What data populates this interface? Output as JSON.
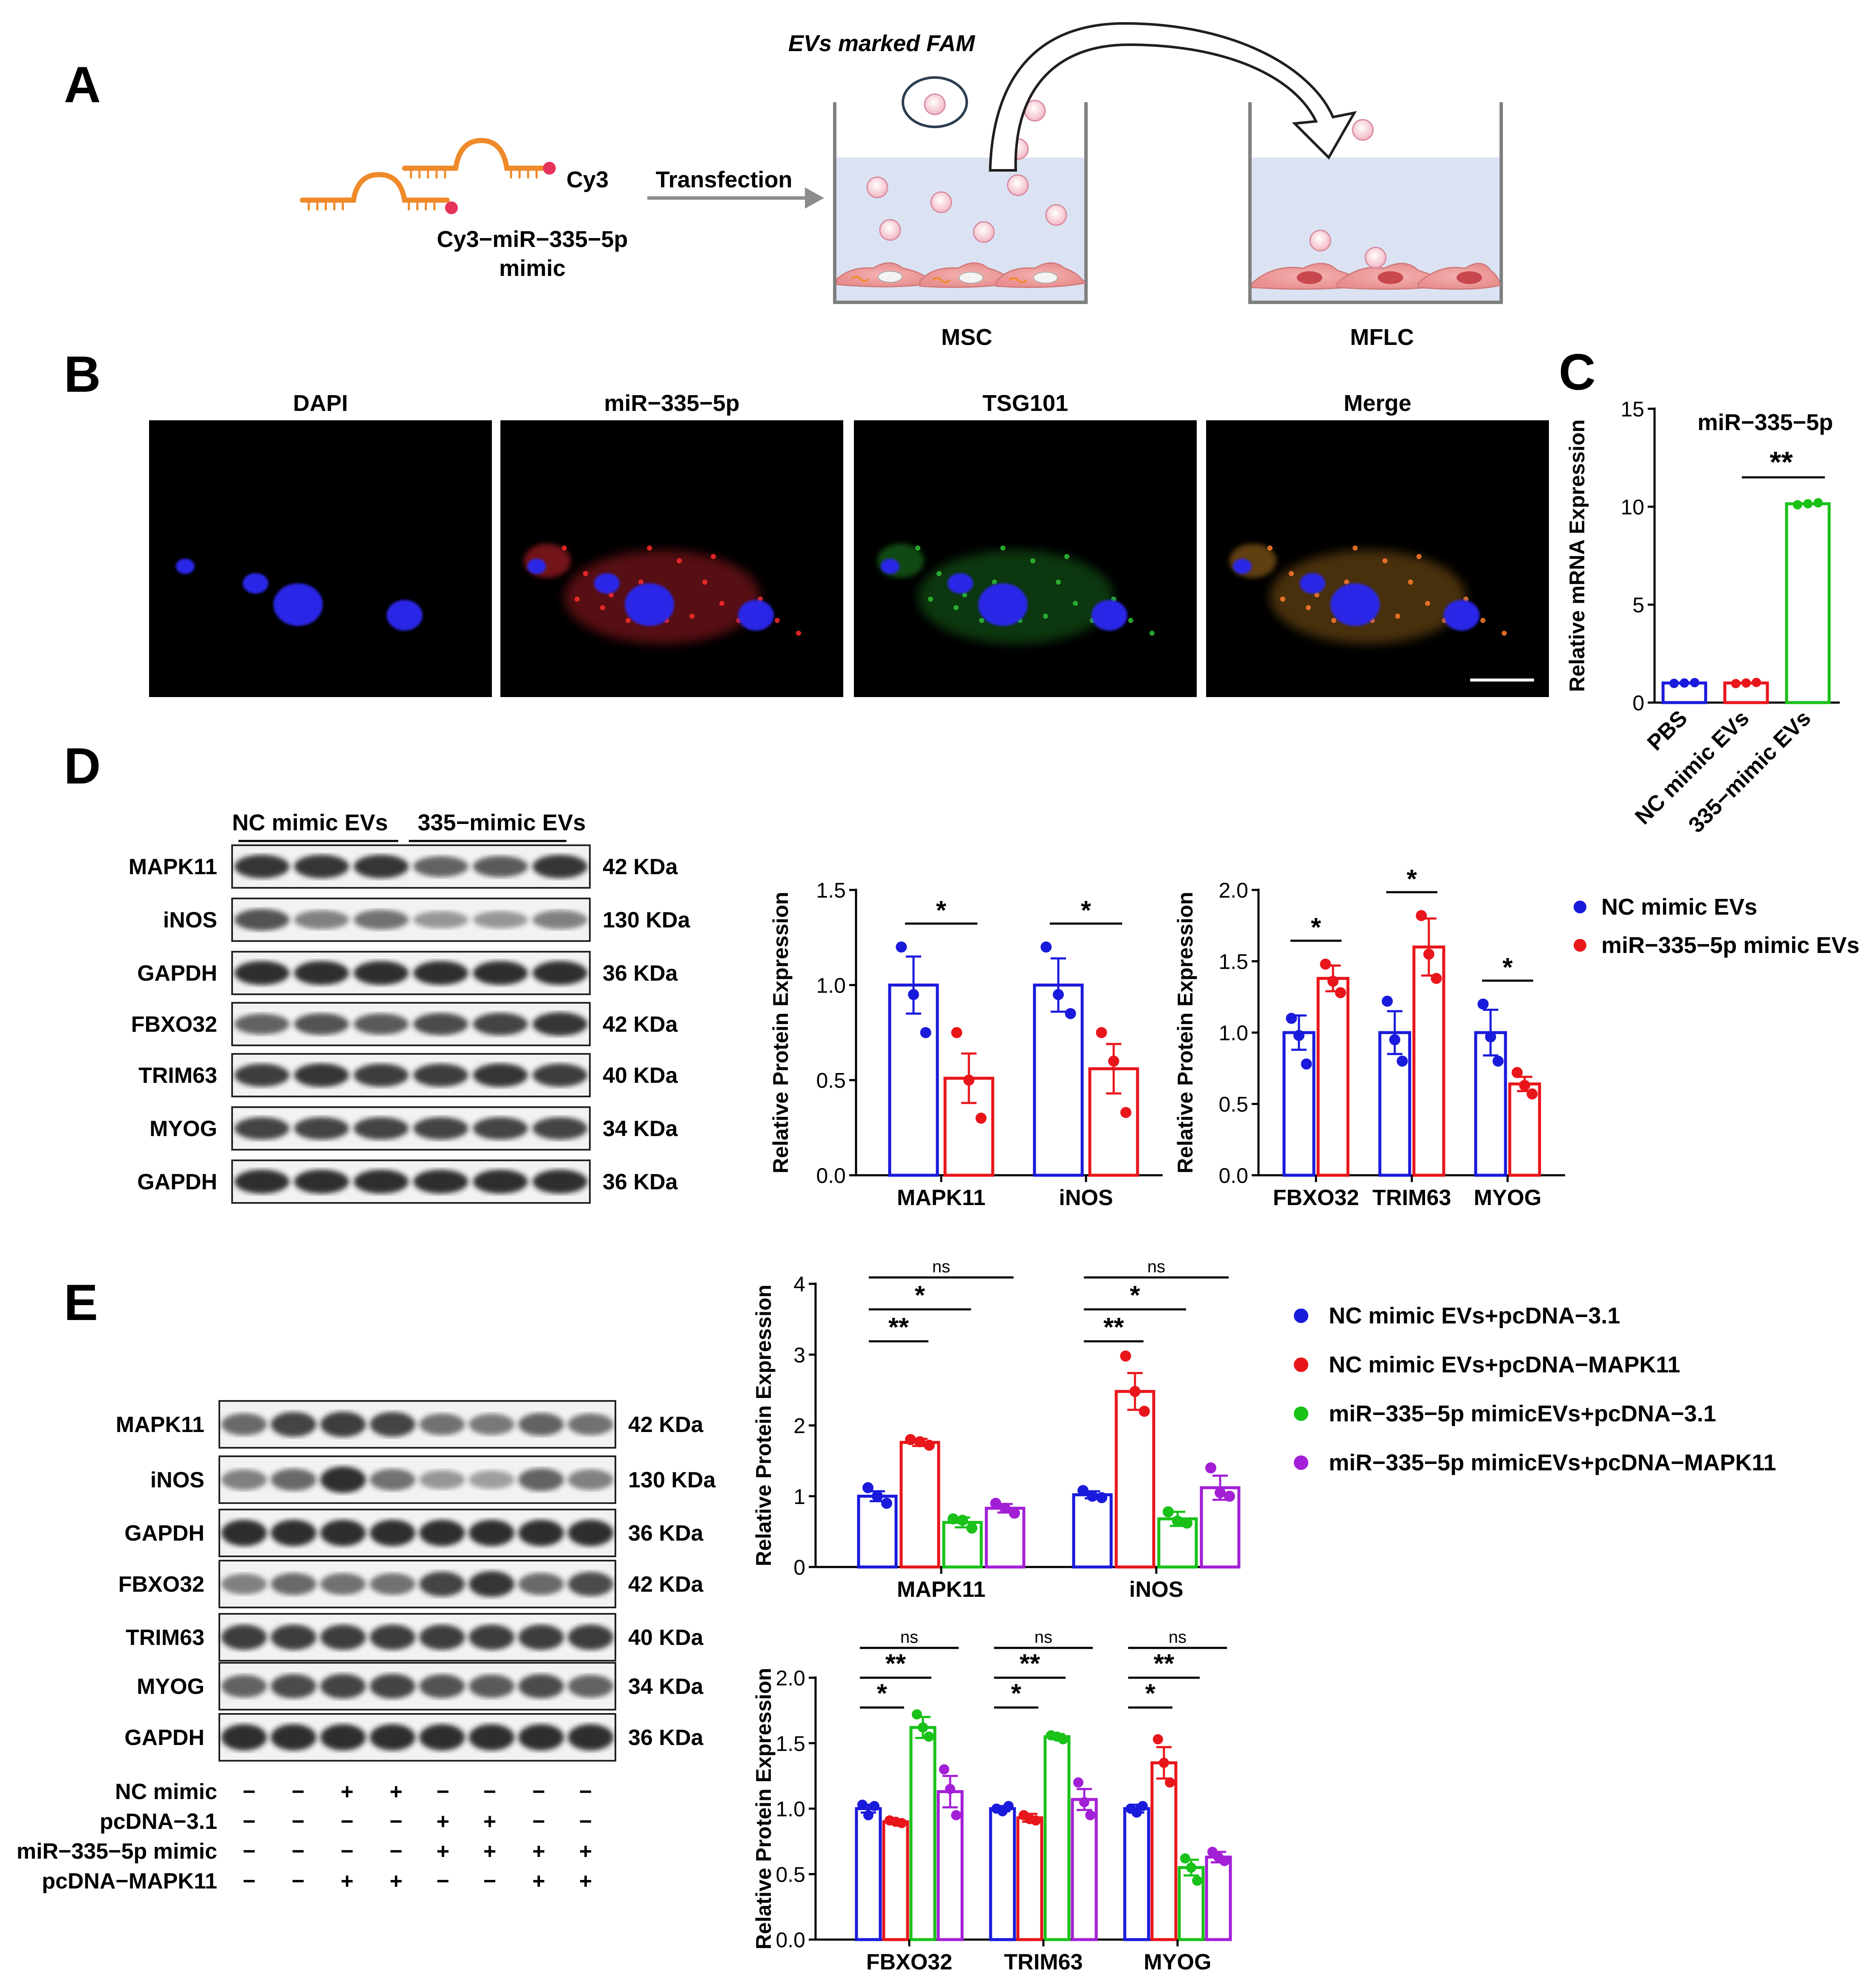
{
  "panels": {
    "A": {
      "label": "A",
      "fam_label": "EVs marked FAM",
      "cy3": "Cy3",
      "mimic_line1": "Cy3−miR−335−5p",
      "mimic_line2": "mimic",
      "transfection": "Transfection",
      "msc": "MSC",
      "mflc": "MFLC"
    },
    "B": {
      "label": "B",
      "titles": [
        "DAPI",
        "miR−335−5p",
        "TSG101",
        "Merge"
      ]
    },
    "C": {
      "label": "C"
    },
    "D": {
      "label": "D",
      "group_headers": [
        "NC mimic EVs",
        "335−mimic EVs"
      ],
      "blots": [
        {
          "protein": "MAPK11",
          "size": "42 KDa"
        },
        {
          "protein": "iNOS",
          "size": "130 KDa"
        },
        {
          "protein": "GAPDH",
          "size": "36 KDa"
        },
        {
          "protein": "FBXO32",
          "size": "42 KDa"
        },
        {
          "protein": "TRIM63",
          "size": "40 KDa"
        },
        {
          "protein": "MYOG",
          "size": "34 KDa"
        },
        {
          "protein": "GAPDH",
          "size": "36 KDa"
        }
      ],
      "legend": [
        "NC mimic EVs",
        "miR−335−5p mimic EVs"
      ]
    },
    "E": {
      "label": "E",
      "blots": [
        {
          "protein": "MAPK11",
          "size": "42 KDa"
        },
        {
          "protein": "iNOS",
          "size": "130 KDa"
        },
        {
          "protein": "GAPDH",
          "size": "36 KDa"
        },
        {
          "protein": "FBXO32",
          "size": "42 KDa"
        },
        {
          "protein": "TRIM63",
          "size": "40 KDa"
        },
        {
          "protein": "MYOG",
          "size": "34 KDa"
        },
        {
          "protein": "GAPDH",
          "size": "36 KDa"
        }
      ],
      "conditions": [
        {
          "name": "NC mimic",
          "marks": [
            "−",
            "−",
            "+",
            "+",
            "−",
            "−",
            "−",
            "−"
          ]
        },
        {
          "name": "pcDNA−3.1",
          "marks": [
            "−",
            "−",
            "−",
            "−",
            "+",
            "+",
            "−",
            "−"
          ]
        },
        {
          "name": "miR−335−5p mimic",
          "marks": [
            "−",
            "−",
            "−",
            "−",
            "+",
            "+",
            "+",
            "+"
          ]
        },
        {
          "name": "pcDNA−MAPK11",
          "marks": [
            "−",
            "−",
            "+",
            "+",
            "−",
            "−",
            "+",
            "+"
          ]
        }
      ],
      "legend": [
        "NC mimic EVs+pcDNA−3.1",
        "NC mimic EVs+pcDNA−MAPK11",
        "miR−335−5p mimicEVs+pcDNA−3.1",
        "miR−335−5p mimicEVs+pcDNA−MAPK11"
      ]
    }
  },
  "colors": {
    "blue": "#1a1adc",
    "red": "#e8161b",
    "green": "#19c119",
    "purple": "#a31fd6"
  },
  "chart_data": [
    {
      "id": "C",
      "type": "bar",
      "title": "miR−335−5p",
      "ylabel": "Relative mRNA Expression",
      "ylim": [
        0,
        15
      ],
      "yticks": [
        0,
        5,
        10,
        15
      ],
      "categories": [
        "PBS",
        "NC mimic EVs",
        "335−mimic EVs"
      ],
      "values": [
        1.0,
        1.0,
        10.15
      ],
      "bar_colors": [
        "blue",
        "red",
        "green"
      ],
      "points": [
        [
          0.98,
          1.0,
          1.02
        ],
        [
          0.97,
          1.0,
          1.03
        ],
        [
          10.1,
          10.15,
          10.2
        ]
      ],
      "significance": [
        {
          "from": 1,
          "to": 2,
          "label": "**"
        }
      ]
    },
    {
      "id": "D1",
      "type": "bar",
      "ylabel": "Relative  Protein Expression",
      "ylim": [
        0,
        1.5
      ],
      "yticks": [
        0.0,
        0.5,
        1.0,
        1.5
      ],
      "categories": [
        "MAPK11",
        "iNOS"
      ],
      "series": [
        {
          "values": [
            1.0,
            1.0
          ],
          "err": [
            0.15,
            0.14
          ],
          "color": "blue",
          "points": [
            [
              1.2,
              0.95,
              0.75
            ],
            [
              1.2,
              0.95,
              0.85
            ]
          ]
        },
        {
          "values": [
            0.51,
            0.56
          ],
          "err": [
            0.13,
            0.13
          ],
          "color": "red",
          "points": [
            [
              0.75,
              0.5,
              0.3
            ],
            [
              0.75,
              0.6,
              0.33
            ]
          ]
        }
      ],
      "significance": [
        {
          "cat": 0,
          "label": "*"
        },
        {
          "cat": 1,
          "label": "*"
        }
      ]
    },
    {
      "id": "D2",
      "type": "bar",
      "ylabel": "Relative  Protein Expression",
      "ylim": [
        0,
        2.0
      ],
      "yticks": [
        0.0,
        0.5,
        1.0,
        1.5,
        2.0
      ],
      "categories": [
        "FBXO32",
        "TRIM63",
        "MYOG"
      ],
      "series": [
        {
          "values": [
            1.0,
            1.0,
            1.0
          ],
          "err": [
            0.12,
            0.15,
            0.16
          ],
          "color": "blue",
          "points": [
            [
              1.1,
              0.98,
              0.78
            ],
            [
              1.22,
              0.95,
              0.8
            ],
            [
              1.2,
              0.97,
              0.8
            ]
          ]
        },
        {
          "values": [
            1.38,
            1.6,
            0.64
          ],
          "err": [
            0.09,
            0.2,
            0.05
          ],
          "color": "red",
          "points": [
            [
              1.48,
              1.36,
              1.28
            ],
            [
              1.82,
              1.55,
              1.38
            ],
            [
              0.72,
              0.63,
              0.57
            ]
          ]
        }
      ],
      "significance": [
        {
          "cat": 0,
          "label": "*"
        },
        {
          "cat": 1,
          "label": "*"
        },
        {
          "cat": 2,
          "label": "*"
        }
      ]
    },
    {
      "id": "E1",
      "type": "bar",
      "ylabel": "Relative  Protein Expression",
      "ylim": [
        0,
        4
      ],
      "yticks": [
        0,
        1,
        2,
        3,
        4
      ],
      "categories": [
        "MAPK11",
        "iNOS"
      ],
      "series": [
        {
          "values": [
            1.0,
            1.02
          ],
          "err": [
            0.07,
            0.05
          ],
          "color": "blue",
          "points": [
            [
              1.12,
              1.0,
              0.9
            ],
            [
              1.08,
              1.0,
              0.98
            ]
          ]
        },
        {
          "values": [
            1.76,
            2.48
          ],
          "err": [
            0.05,
            0.26
          ],
          "color": "red",
          "points": [
            [
              1.8,
              1.77,
              1.72
            ],
            [
              2.98,
              2.48,
              2.2
            ]
          ]
        },
        {
          "values": [
            0.63,
            0.68
          ],
          "err": [
            0.07,
            0.1
          ],
          "color": "green",
          "points": [
            [
              0.68,
              0.66,
              0.55
            ],
            [
              0.78,
              0.65,
              0.62
            ]
          ]
        },
        {
          "values": [
            0.83,
            1.12
          ],
          "err": [
            0.06,
            0.17
          ],
          "color": "purple",
          "points": [
            [
              0.9,
              0.83,
              0.76
            ],
            [
              1.4,
              1.05,
              1.0
            ]
          ]
        }
      ],
      "significance": [
        {
          "cat": 0,
          "to": 1,
          "label": "**"
        },
        {
          "cat": 0,
          "to": 2,
          "label": "*"
        },
        {
          "cat": 0,
          "to": 3,
          "label": "ns"
        },
        {
          "cat": 1,
          "to": 1,
          "label": "**"
        },
        {
          "cat": 1,
          "to": 2,
          "label": "*"
        },
        {
          "cat": 1,
          "to": 3,
          "label": "ns"
        }
      ]
    },
    {
      "id": "E2",
      "type": "bar",
      "ylabel": "Relative  Protein Expression",
      "ylim": [
        0,
        2.0
      ],
      "yticks": [
        0.0,
        0.5,
        1.0,
        1.5,
        2.0
      ],
      "categories": [
        "FBXO32",
        "TRIM63",
        "MYOG"
      ],
      "series": [
        {
          "values": [
            1.0,
            1.0,
            1.0
          ],
          "err": [
            0.03,
            0.02,
            0.03
          ],
          "color": "blue",
          "points": [
            [
              1.03,
              0.95,
              1.02
            ],
            [
              1.0,
              0.98,
              1.02
            ],
            [
              1.0,
              0.97,
              1.02
            ]
          ]
        },
        {
          "values": [
            0.9,
            0.93,
            1.35
          ],
          "err": [
            0.01,
            0.03,
            0.12
          ],
          "color": "red",
          "points": [
            [
              0.91,
              0.9,
              0.89
            ],
            [
              0.95,
              0.92,
              0.91
            ],
            [
              1.53,
              1.35,
              1.2
            ]
          ]
        },
        {
          "values": [
            1.62,
            1.55,
            0.55
          ],
          "err": [
            0.08,
            0.02,
            0.06
          ],
          "color": "green",
          "points": [
            [
              1.72,
              1.62,
              1.55
            ],
            [
              1.56,
              1.55,
              1.53
            ],
            [
              0.62,
              0.55,
              0.45
            ]
          ]
        },
        {
          "values": [
            1.13,
            1.07,
            0.63
          ],
          "err": [
            0.12,
            0.08,
            0.04
          ],
          "color": "purple",
          "points": [
            [
              1.3,
              1.15,
              0.95
            ],
            [
              1.2,
              1.05,
              0.95
            ],
            [
              0.67,
              0.63,
              0.6
            ]
          ]
        }
      ],
      "significance": [
        {
          "cat": 0,
          "to": 1,
          "label": "*"
        },
        {
          "cat": 0,
          "to": 2,
          "label": "**"
        },
        {
          "cat": 0,
          "to": 3,
          "label": "ns"
        },
        {
          "cat": 1,
          "to": 1,
          "label": "*"
        },
        {
          "cat": 1,
          "to": 2,
          "label": "**"
        },
        {
          "cat": 1,
          "to": 3,
          "label": "ns"
        },
        {
          "cat": 2,
          "to": 1,
          "label": "*"
        },
        {
          "cat": 2,
          "to": 2,
          "label": "**"
        },
        {
          "cat": 2,
          "to": 3,
          "label": "ns"
        }
      ]
    }
  ]
}
